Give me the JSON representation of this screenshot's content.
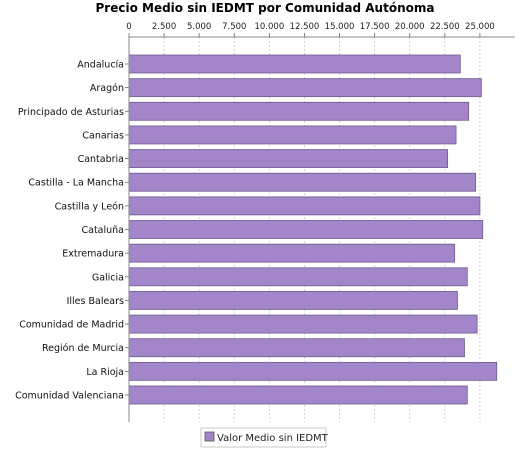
{
  "chart_data": {
    "type": "bar",
    "orientation": "horizontal",
    "title": "Precio Medio sin IEDMT por Comunidad Autónoma",
    "xlim": [
      0,
      27500
    ],
    "ticks": [
      "0",
      "2.500",
      "5.000",
      "7.500",
      "10.000",
      "12.500",
      "15.000",
      "17.500",
      "20.000",
      "22.500",
      "25.000"
    ],
    "tick_values": [
      0,
      2500,
      5000,
      7500,
      10000,
      12500,
      15000,
      17500,
      20000,
      22500,
      25000
    ],
    "grid": true,
    "legend_position": "bottom",
    "categories": [
      "Andalucía",
      "Aragón",
      "Principado de Asturias",
      "Canarias",
      "Cantabria",
      "Castilla - La Mancha",
      "Castilla y León",
      "Cataluña",
      "Extremadura",
      "Galicia",
      "Illes Balears",
      "Comunidad de Madrid",
      "Región de Murcia",
      "La Rioja",
      "Comunidad Valenciana"
    ],
    "series": [
      {
        "name": "Valor Medio sin IEDMT",
        "color": "#a386c9",
        "values": [
          23600,
          25100,
          24200,
          23300,
          22700,
          24700,
          25000,
          25200,
          23200,
          24100,
          23400,
          24800,
          23900,
          26200,
          24100
        ]
      }
    ]
  }
}
